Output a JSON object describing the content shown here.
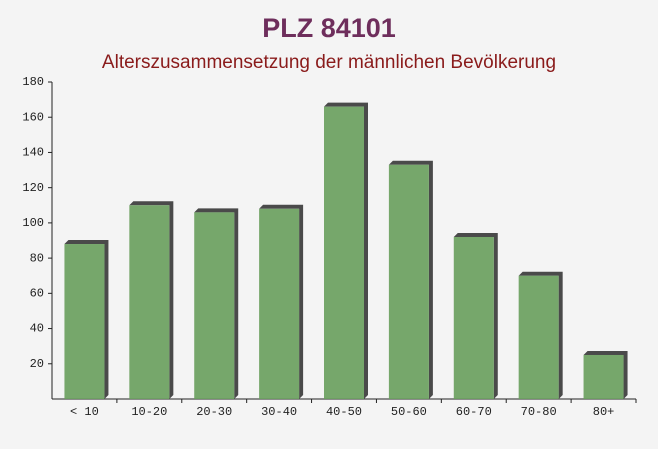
{
  "chart_data": {
    "type": "bar",
    "title": "PLZ 84101",
    "subtitle": "Alterszusammensetzung der männlichen Bevölkerung",
    "categories": [
      "< 10",
      "10-20",
      "20-30",
      "30-40",
      "40-50",
      "50-60",
      "60-70",
      "70-80",
      "80+"
    ],
    "values": [
      88,
      110,
      106,
      108,
      166,
      133,
      92,
      70,
      25
    ],
    "color": "#6a9f5e",
    "ylim": [
      0,
      180
    ],
    "yticks": [
      20,
      40,
      60,
      80,
      100,
      120,
      140,
      160,
      180
    ],
    "grid": false
  }
}
